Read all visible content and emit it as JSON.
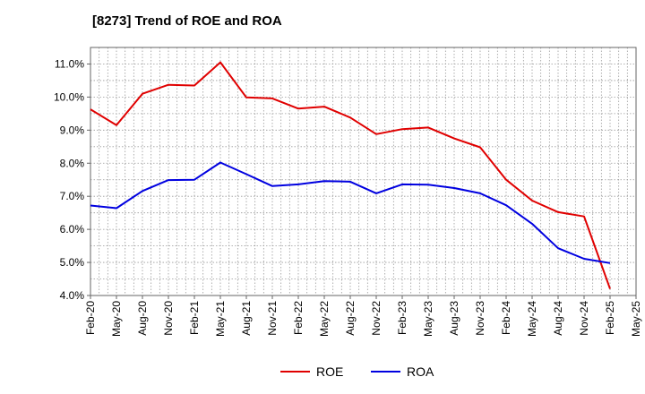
{
  "chart_data": {
    "type": "line",
    "title": "[8273]  Trend of ROE and ROA",
    "xlabel": "",
    "ylabel": "",
    "categories": [
      "Feb-20",
      "May-20",
      "Aug-20",
      "Nov-20",
      "Feb-21",
      "May-21",
      "Aug-21",
      "Nov-21",
      "Feb-22",
      "May-22",
      "Aug-22",
      "Nov-22",
      "Feb-23",
      "May-23",
      "Aug-23",
      "Nov-23",
      "Feb-24",
      "May-24",
      "Aug-24",
      "Nov-24",
      "Feb-25",
      "May-25"
    ],
    "ylim": [
      4.0,
      11.5
    ],
    "yticks": [
      "4.0%",
      "5.0%",
      "6.0%",
      "7.0%",
      "8.0%",
      "9.0%",
      "10.0%",
      "11.0%"
    ],
    "ytick_values": [
      4.0,
      5.0,
      6.0,
      7.0,
      8.0,
      9.0,
      10.0,
      11.0
    ],
    "grid": true,
    "legend_position": "bottom-center",
    "series": [
      {
        "name": "ROE",
        "color": "#e00000",
        "values": [
          9.63,
          9.15,
          10.1,
          10.37,
          10.35,
          11.05,
          9.99,
          9.96,
          9.65,
          9.71,
          9.38,
          8.88,
          9.03,
          9.08,
          8.75,
          8.48,
          7.5,
          6.87,
          6.52,
          6.39,
          4.2,
          null
        ]
      },
      {
        "name": "ROA",
        "color": "#0000e0",
        "values": [
          6.72,
          6.64,
          7.16,
          7.49,
          7.5,
          8.02,
          7.67,
          7.31,
          7.36,
          7.46,
          7.44,
          7.09,
          7.36,
          7.35,
          7.25,
          7.09,
          6.73,
          6.17,
          5.43,
          5.11,
          4.98,
          null
        ]
      }
    ]
  }
}
